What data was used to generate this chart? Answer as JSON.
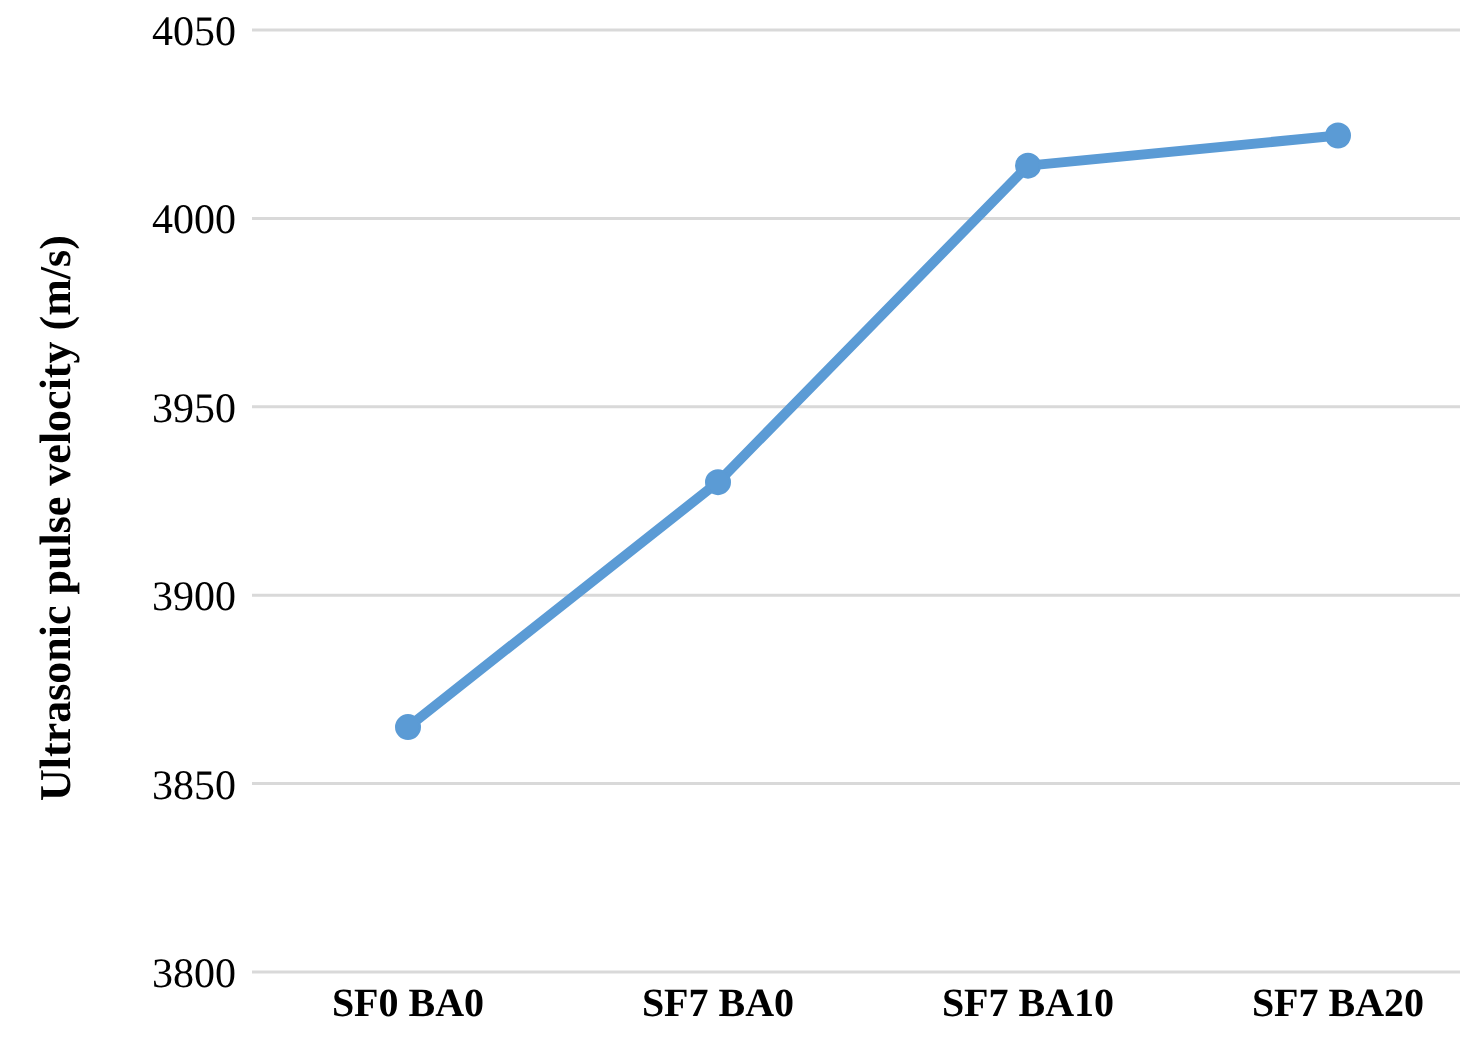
{
  "chart_data": {
    "type": "line",
    "ylabel": "Ultrasonic pulse velocity (m/s)",
    "categories": [
      "SF0 BA0",
      "SF7 BA0",
      "SF7 BA10",
      "SF7 BA20"
    ],
    "series": [
      {
        "color": "#5b9bd5",
        "values": [
          3865,
          3930,
          4014,
          4022
        ]
      }
    ],
    "ylim": [
      3800,
      4050
    ],
    "yticks": [
      3800,
      3850,
      3900,
      3950,
      4000,
      4050
    ],
    "grid": "y",
    "marker": "circle",
    "line_style": "solid"
  }
}
